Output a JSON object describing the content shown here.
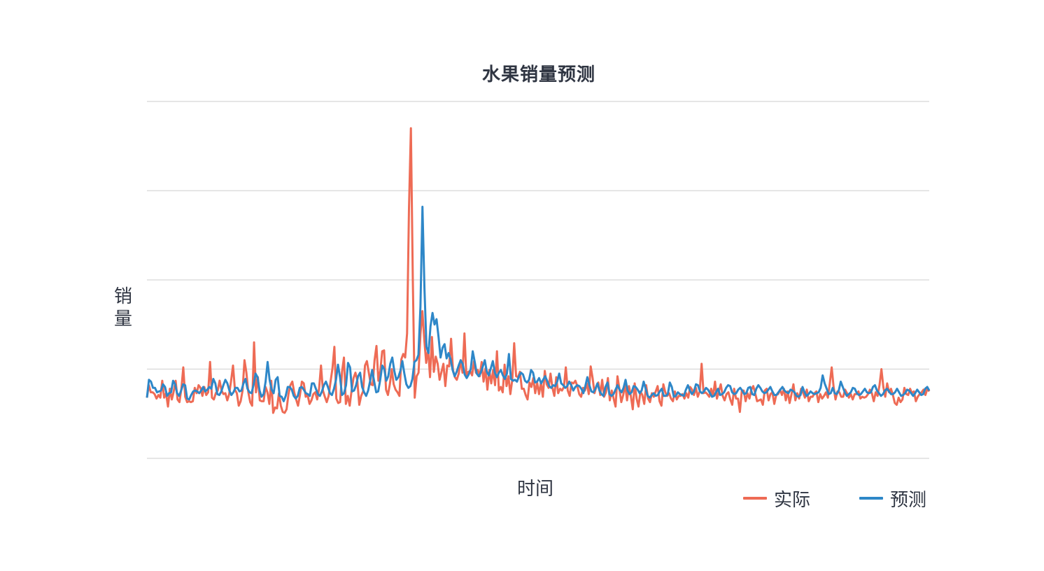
{
  "chart_data": {
    "type": "line",
    "title": "水果销量预测",
    "xlabel": "时间",
    "ylabel": "销量",
    "ylim": [
      0,
      4
    ],
    "grid": "horizontal",
    "legend_position": "bottom-right",
    "series": [
      {
        "name": "实际",
        "color": "#ee6b55",
        "values": [
          0.68,
          0.82,
          0.74,
          0.74,
          0.72,
          0.67,
          0.71,
          0.68,
          0.87,
          0.68,
          0.73,
          0.58,
          0.78,
          0.66,
          0.75,
          0.87,
          0.66,
          0.63,
          0.78,
          1.02,
          0.69,
          0.63,
          0.64,
          0.63,
          0.64,
          0.79,
          0.73,
          0.82,
          0.79,
          0.7,
          0.8,
          0.71,
          0.74,
          1.08,
          0.68,
          0.66,
          0.73,
          0.76,
          0.87,
          0.76,
          0.72,
          0.73,
          0.65,
          0.72,
          0.87,
          1.04,
          0.77,
          0.73,
          0.59,
          0.64,
          0.76,
          1.1,
          0.96,
          0.74,
          0.63,
          0.59,
          1.3,
          0.74,
          0.91,
          0.65,
          0.64,
          0.64,
          0.8,
          0.74,
          0.61,
          0.87,
          0.51,
          0.57,
          0.56,
          0.73,
          0.59,
          0.52,
          0.51,
          0.55,
          0.72,
          0.82,
          0.86,
          0.74,
          0.66,
          0.59,
          0.71,
          0.86,
          0.84,
          0.69,
          0.71,
          0.61,
          0.65,
          0.72,
          0.74,
          0.66,
          0.78,
          1.04,
          0.76,
          0.69,
          0.63,
          0.7,
          0.86,
          1.01,
          1.25,
          0.67,
          0.62,
          0.63,
          0.97,
          1.13,
          0.61,
          0.7,
          0.59,
          0.76,
          0.9,
          0.96,
          0.87,
          0.6,
          0.7,
          0.75,
          1.04,
          1.09,
          0.96,
          0.83,
          0.82,
          1.1,
          1.26,
          0.87,
          0.98,
          1.2,
          1.21,
          0.77,
          0.71,
          0.83,
          1.0,
          0.83,
          0.77,
          0.74,
          0.7,
          1.11,
          1.17,
          1.13,
          1.4,
          2.8,
          3.7,
          2.0,
          0.68,
          0.92,
          0.96,
          1.39,
          1.65,
          1.33,
          1.07,
          1.23,
          0.91,
          1.36,
          0.97,
          1.14,
          1.06,
          0.88,
          0.97,
          1.06,
          0.81,
          1.04,
          1.03,
          1.34,
          0.99,
          0.91,
          0.88,
          0.95,
          1.1,
          0.96,
          1.4,
          0.92,
          0.97,
          0.98,
          0.93,
          1.09,
          0.96,
          0.99,
          0.92,
          1.08,
          0.86,
          1.01,
          0.77,
          0.99,
          0.84,
          0.99,
          0.82,
          1.2,
          0.76,
          0.8,
          0.74,
          1.05,
          0.81,
          0.92,
          0.72,
          0.88,
          1.29,
          0.92,
          0.91,
          0.97,
          0.78,
          0.78,
          0.71,
          0.66,
          0.85,
          0.8,
          0.9,
          0.73,
          0.85,
          0.72,
          0.85,
          0.69,
          0.98,
          0.83,
          0.79,
          0.95,
          0.79,
          0.7,
          0.91,
          0.73,
          0.78,
          0.76,
          0.8,
          1.02,
          0.76,
          0.7,
          0.85,
          0.84,
          0.87,
          0.81,
          0.72,
          0.69,
          0.79,
          0.76,
          0.84,
          0.72,
          1.03,
          0.9,
          0.73,
          0.81,
          0.85,
          0.71,
          0.88,
          0.69,
          0.74,
          0.9,
          0.65,
          0.76,
          0.67,
          0.58,
          0.92,
          0.78,
          0.63,
          0.71,
          0.83,
          0.65,
          0.81,
          0.7,
          0.55,
          0.84,
          0.67,
          0.58,
          0.75,
          0.71,
          0.61,
          0.82,
          0.67,
          0.63,
          0.73,
          0.69,
          0.75,
          0.81,
          0.64,
          0.59,
          0.83,
          0.74,
          0.7,
          0.73,
          0.67,
          0.64,
          0.75,
          0.66,
          0.7,
          0.7,
          0.72,
          0.67,
          0.73,
          0.68,
          0.8,
          0.77,
          0.71,
          0.79,
          0.69,
          0.75,
          1.06,
          0.73,
          0.74,
          0.72,
          0.69,
          0.78,
          0.7,
          0.86,
          0.67,
          0.75,
          0.83,
          0.7,
          0.65,
          0.72,
          0.74,
          0.66,
          0.6,
          0.78,
          0.67,
          0.67,
          0.52,
          0.76,
          0.76,
          0.64,
          0.73,
          0.67,
          0.77,
          0.81,
          0.73,
          0.64,
          0.65,
          0.66,
          0.6,
          0.76,
          0.78,
          0.65,
          0.72,
          0.74,
          0.61,
          0.71,
          0.72,
          0.77,
          0.71,
          0.78,
          0.65,
          0.75,
          0.62,
          0.72,
          0.83,
          0.65,
          0.73,
          0.67,
          0.78,
          0.74,
          0.68,
          0.77,
          0.64,
          0.69,
          0.69,
          0.73,
          0.75,
          0.63,
          0.72,
          0.67,
          0.7,
          0.74,
          0.68,
          0.84,
          1.02,
          0.8,
          0.66,
          0.75,
          0.74,
          0.69,
          0.69,
          0.77,
          0.73,
          0.68,
          0.72,
          0.66,
          0.72,
          0.72,
          0.75,
          0.67,
          0.69,
          0.68,
          0.69,
          0.72,
          0.77,
          0.73,
          0.64,
          0.74,
          0.7,
          0.82,
          1.0,
          0.8,
          0.69,
          0.84,
          0.74,
          0.78,
          0.71,
          0.62,
          0.6,
          0.68,
          0.63,
          0.66,
          0.79,
          0.72,
          0.71,
          0.78,
          0.73,
          0.75,
          0.64,
          0.69,
          0.72,
          0.74,
          0.77,
          0.71,
          0.78,
          0.75
        ]
      },
      {
        "name": "预测",
        "color": "#2e87c8",
        "values": [
          0.68,
          0.88,
          0.86,
          0.79,
          0.79,
          0.74,
          0.75,
          0.76,
          0.83,
          0.8,
          0.7,
          0.73,
          0.74,
          0.87,
          0.83,
          0.73,
          0.7,
          0.76,
          0.83,
          0.82,
          0.67,
          0.66,
          0.71,
          0.75,
          0.76,
          0.75,
          0.73,
          0.76,
          0.8,
          0.75,
          0.77,
          0.8,
          0.78,
          0.89,
          0.84,
          0.72,
          0.71,
          0.75,
          0.82,
          0.88,
          0.84,
          0.76,
          0.71,
          0.74,
          0.79,
          0.79,
          0.75,
          0.76,
          0.84,
          0.89,
          0.78,
          0.74,
          0.73,
          0.82,
          0.95,
          0.91,
          0.76,
          0.69,
          0.72,
          0.86,
          1.08,
          0.88,
          0.77,
          0.73,
          0.88,
          0.91,
          0.7,
          0.69,
          0.64,
          0.7,
          0.8,
          0.8,
          0.77,
          0.7,
          0.67,
          0.7,
          0.79,
          0.8,
          0.77,
          0.73,
          0.72,
          0.7,
          0.84,
          0.84,
          0.78,
          0.72,
          0.7,
          0.75,
          0.82,
          0.86,
          0.8,
          0.73,
          0.71,
          0.78,
          0.88,
          1.05,
          0.91,
          0.71,
          0.73,
          0.82,
          1.07,
          1.02,
          0.75,
          0.76,
          0.82,
          0.92,
          0.96,
          0.8,
          0.74,
          0.7,
          0.76,
          0.87,
          0.99,
          0.86,
          0.74,
          0.75,
          0.88,
          1.04,
          1.0,
          0.87,
          0.92,
          1.06,
          1.13,
          0.98,
          0.88,
          0.91,
          0.98,
          1.09,
          0.95,
          0.83,
          0.79,
          0.81,
          0.89,
          1.08,
          1.1,
          1.16,
          1.7,
          2.82,
          1.9,
          1.25,
          1.18,
          1.48,
          1.63,
          1.5,
          1.56,
          1.36,
          1.13,
          1.24,
          1.28,
          1.12,
          1.18,
          1.11,
          0.99,
          0.92,
          0.97,
          1.04,
          1.1,
          1.06,
          0.94,
          0.9,
          0.94,
          1.0,
          1.2,
          1.08,
          0.95,
          0.92,
          0.96,
          1.03,
          1.1,
          0.97,
          0.93,
          1.01,
          1.09,
          0.96,
          0.91,
          0.96,
          0.99,
          0.93,
          0.89,
          0.95,
          1.17,
          0.89,
          0.87,
          0.88,
          0.86,
          0.92,
          0.96,
          0.94,
          0.87,
          0.85,
          0.88,
          0.99,
          0.96,
          0.85,
          0.86,
          0.9,
          0.84,
          0.88,
          0.92,
          0.87,
          0.81,
          0.79,
          0.82,
          0.81,
          0.86,
          0.95,
          0.84,
          0.82,
          0.79,
          0.81,
          0.86,
          0.82,
          0.76,
          0.8,
          0.82,
          0.81,
          0.78,
          0.73,
          0.81,
          0.91,
          0.82,
          0.75,
          0.74,
          0.78,
          0.84,
          0.76,
          0.72,
          0.7,
          0.8,
          0.85,
          0.72,
          0.7,
          0.72,
          0.77,
          0.82,
          0.77,
          0.74,
          0.79,
          0.88,
          0.76,
          0.72,
          0.74,
          0.81,
          0.8,
          0.77,
          0.73,
          0.76,
          0.86,
          0.78,
          0.7,
          0.68,
          0.71,
          0.73,
          0.7,
          0.71,
          0.75,
          0.78,
          0.7,
          0.7,
          0.72,
          0.85,
          0.8,
          0.69,
          0.7,
          0.74,
          0.72,
          0.71,
          0.7,
          0.77,
          0.82,
          0.76,
          0.72,
          0.75,
          0.83,
          0.82,
          0.75,
          0.73,
          0.75,
          0.79,
          0.77,
          0.73,
          0.69,
          0.7,
          0.74,
          0.78,
          0.71,
          0.72,
          0.74,
          0.79,
          0.82,
          0.81,
          0.74,
          0.72,
          0.73,
          0.77,
          0.79,
          0.76,
          0.72,
          0.73,
          0.79,
          0.8,
          0.72,
          0.71,
          0.78,
          0.82,
          0.79,
          0.75,
          0.73,
          0.74,
          0.77,
          0.8,
          0.75,
          0.71,
          0.71,
          0.74,
          0.77,
          0.8,
          0.76,
          0.74,
          0.73,
          0.77,
          0.76,
          0.74,
          0.7,
          0.69,
          0.71,
          0.8,
          0.74,
          0.7,
          0.72,
          0.75,
          0.73,
          0.72,
          0.73,
          0.74,
          0.79,
          0.93,
          0.84,
          0.78,
          0.72,
          0.73,
          0.79,
          0.73,
          0.72,
          0.76,
          0.86,
          0.8,
          0.74,
          0.7,
          0.72,
          0.74,
          0.79,
          0.78,
          0.73,
          0.71,
          0.72,
          0.75,
          0.78,
          0.74,
          0.73,
          0.74,
          0.8,
          0.82,
          0.76,
          0.73,
          0.7,
          0.72,
          0.76,
          0.78,
          0.75,
          0.72,
          0.72,
          0.74,
          0.78,
          0.74,
          0.7,
          0.71,
          0.73,
          0.77,
          0.76,
          0.73,
          0.7,
          0.73,
          0.77,
          0.74,
          0.71,
          0.72,
          0.78,
          0.8,
          0.76
        ]
      }
    ]
  }
}
